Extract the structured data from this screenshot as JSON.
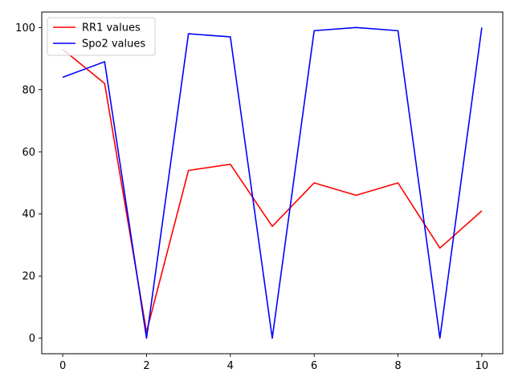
{
  "chart_data": {
    "type": "line",
    "title": "",
    "xlabel": "",
    "ylabel": "",
    "x": [
      0,
      1,
      2,
      3,
      4,
      5,
      6,
      7,
      8,
      9,
      10
    ],
    "xlim": [
      -0.5,
      10.5
    ],
    "ylim": [
      -5,
      105
    ],
    "xticks": [
      0,
      2,
      4,
      6,
      8,
      10
    ],
    "yticks": [
      0,
      20,
      40,
      60,
      80,
      100
    ],
    "grid": false,
    "legend_position": "top-left",
    "series": [
      {
        "name": "RR1 values",
        "color": "#ff0000",
        "values": [
          93,
          82,
          2,
          54,
          56,
          36,
          50,
          46,
          50,
          29,
          41
        ]
      },
      {
        "name": "Spo2 values",
        "color": "#0000ff",
        "values": [
          84,
          89,
          0,
          98,
          97,
          0,
          99,
          100,
          99,
          0,
          100
        ]
      }
    ]
  }
}
